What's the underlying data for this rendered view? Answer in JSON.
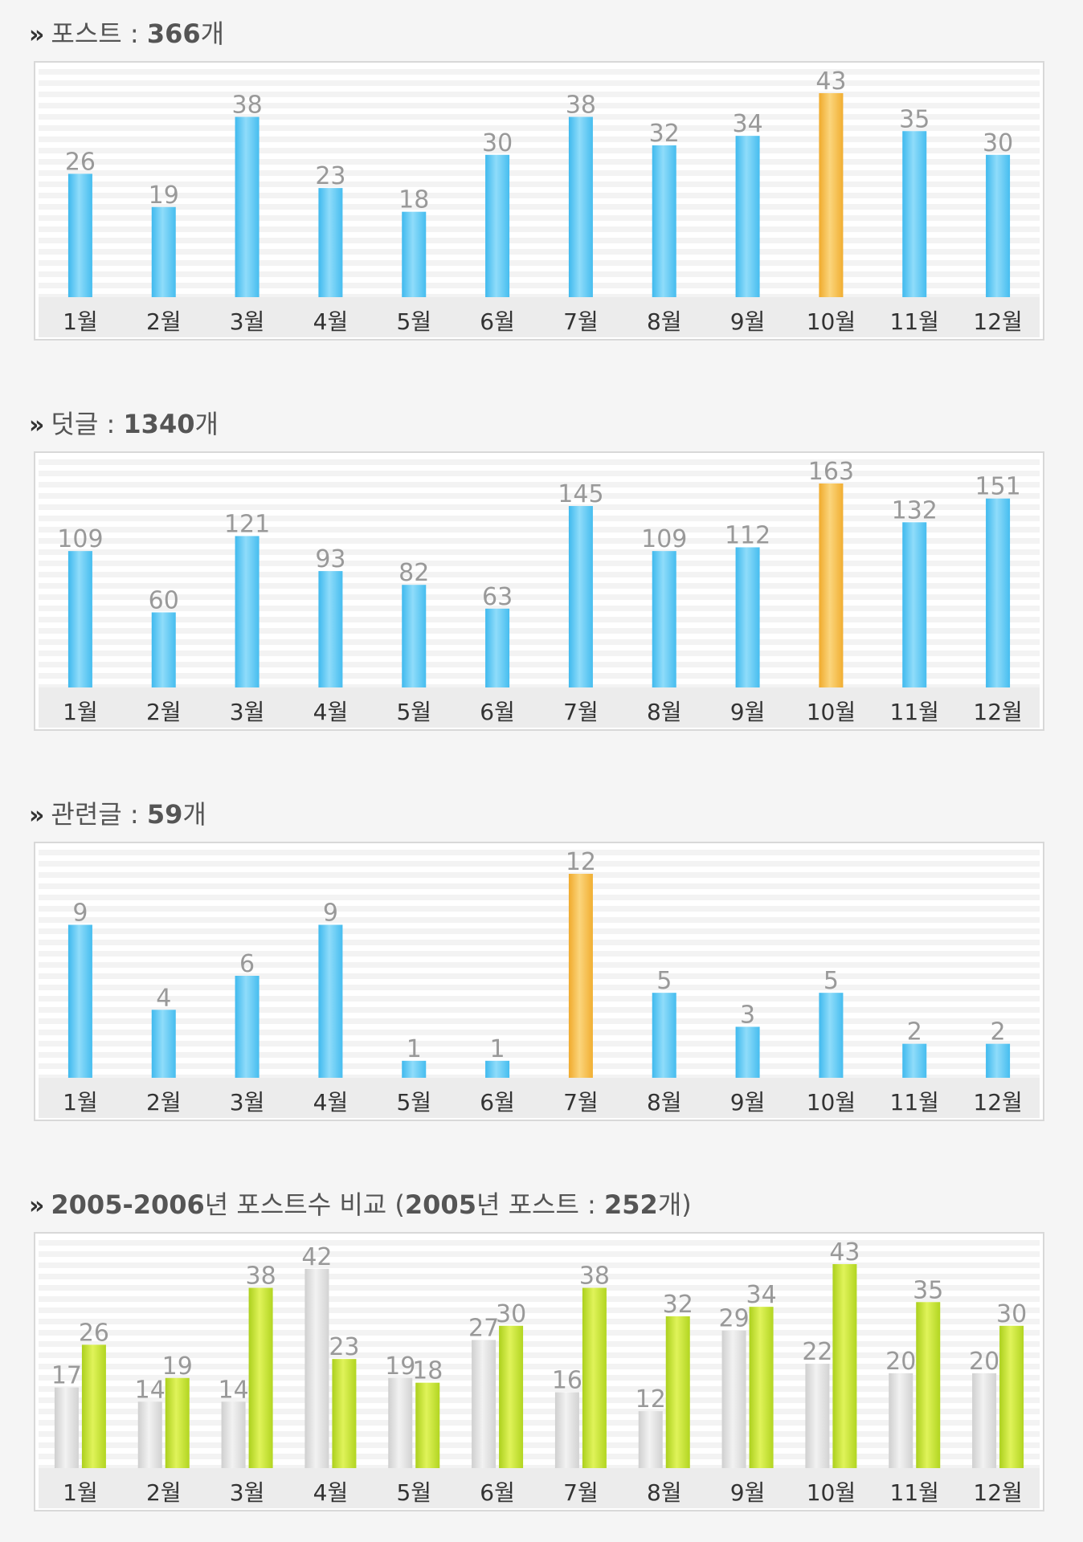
{
  "colors": {
    "bar_blue": "#5ccbf5",
    "bar_highlight": "#f5bb3f",
    "bar_gray": "#d9d9d9",
    "bar_green": "#c2e02d",
    "stripe": "#f3f3f3",
    "axis_band": "#ececec"
  },
  "sections": [
    {
      "title_prefix": "포스트 : ",
      "title_value": "366",
      "title_suffix": "개"
    },
    {
      "title_prefix": "덧글 : ",
      "title_value": "1340",
      "title_suffix": "개"
    },
    {
      "title_prefix": "관련글 : ",
      "title_value": "59",
      "title_suffix": "개"
    },
    {
      "title_prefix": "",
      "title_value": "2005-2006",
      "title_middle": "년 포스트수 비교 (",
      "title_value2": "2005",
      "title_middle2": "년 포스트 : ",
      "title_value3": "252",
      "title_suffix": "개)"
    }
  ],
  "chart_data": [
    {
      "type": "bar",
      "categories": [
        "1월",
        "2월",
        "3월",
        "4월",
        "5월",
        "6월",
        "7월",
        "8월",
        "9월",
        "10월",
        "11월",
        "12월"
      ],
      "values": [
        26,
        19,
        38,
        23,
        18,
        30,
        38,
        32,
        34,
        43,
        35,
        30
      ],
      "highlight_index": 9,
      "ylim": [
        0,
        43
      ]
    },
    {
      "type": "bar",
      "categories": [
        "1월",
        "2월",
        "3월",
        "4월",
        "5월",
        "6월",
        "7월",
        "8월",
        "9월",
        "10월",
        "11월",
        "12월"
      ],
      "values": [
        109,
        60,
        121,
        93,
        82,
        63,
        145,
        109,
        112,
        163,
        132,
        151
      ],
      "highlight_index": 9,
      "ylim": [
        0,
        163
      ]
    },
    {
      "type": "bar",
      "categories": [
        "1월",
        "2월",
        "3월",
        "4월",
        "5월",
        "6월",
        "7월",
        "8월",
        "9월",
        "10월",
        "11월",
        "12월"
      ],
      "values": [
        9,
        4,
        6,
        9,
        1,
        1,
        12,
        5,
        3,
        5,
        2,
        2
      ],
      "highlight_index": 6,
      "ylim": [
        0,
        12
      ]
    },
    {
      "type": "bar",
      "categories": [
        "1월",
        "2월",
        "3월",
        "4월",
        "5월",
        "6월",
        "7월",
        "8월",
        "9월",
        "10월",
        "11월",
        "12월"
      ],
      "series": [
        {
          "values": [
            17,
            14,
            14,
            42,
            19,
            27,
            16,
            12,
            29,
            22,
            20,
            20
          ]
        },
        {
          "values": [
            26,
            19,
            38,
            23,
            18,
            30,
            38,
            32,
            34,
            43,
            35,
            30
          ]
        }
      ],
      "ylim": [
        0,
        43
      ]
    }
  ]
}
